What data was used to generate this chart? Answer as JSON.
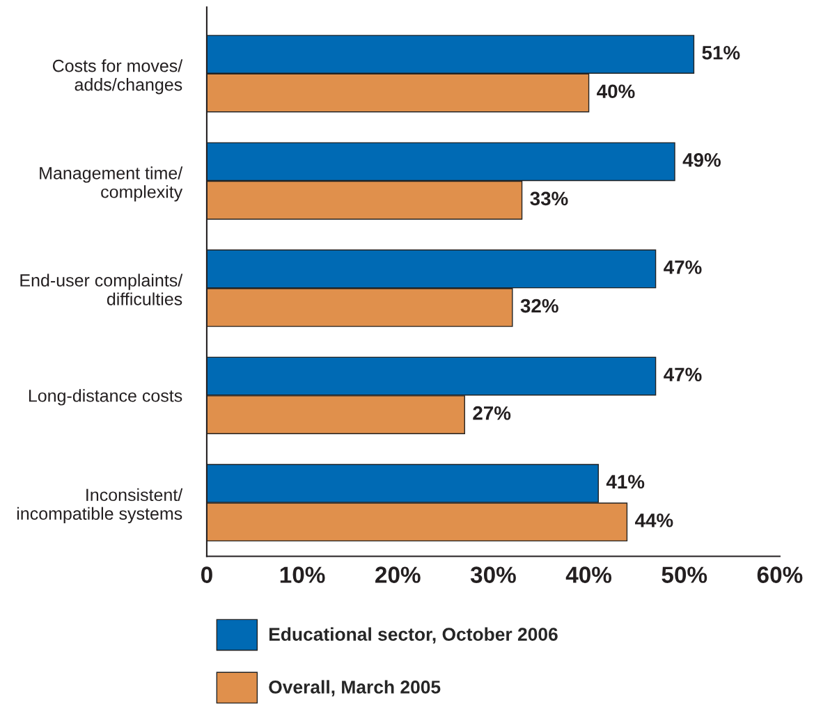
{
  "chart_data": {
    "type": "bar",
    "orientation": "horizontal",
    "categories": [
      "Costs for moves/\nadds/changes",
      "Management time/\ncomplexity",
      "End-user complaints/\ndifficulties",
      "Long-distance costs",
      "Inconsistent/\nincompatible systems"
    ],
    "series": [
      {
        "name": "Educational sector, October 2006",
        "color": "#006ab4",
        "values": [
          51,
          49,
          47,
          47,
          41
        ],
        "value_labels": [
          "51%",
          "49%",
          "47%",
          "47%",
          "41%"
        ]
      },
      {
        "name": "Overall, March 2005",
        "color": "#e0904c",
        "values": [
          40,
          33,
          32,
          27,
          44
        ],
        "value_labels": [
          "40%",
          "33%",
          "32%",
          "27%",
          "44%"
        ]
      }
    ],
    "xlim": [
      0,
      60
    ],
    "xticks": [
      0,
      {
        "value": 10,
        "label": "10%"
      },
      {
        "value": 20,
        "label": "20%"
      },
      {
        "value": 30,
        "label": "30%"
      },
      {
        "value": 40,
        "label": "40%"
      },
      {
        "value": 50,
        "label": "50%"
      },
      {
        "value": 60,
        "label": "60%"
      }
    ],
    "grid": false,
    "legend": "bottom"
  }
}
